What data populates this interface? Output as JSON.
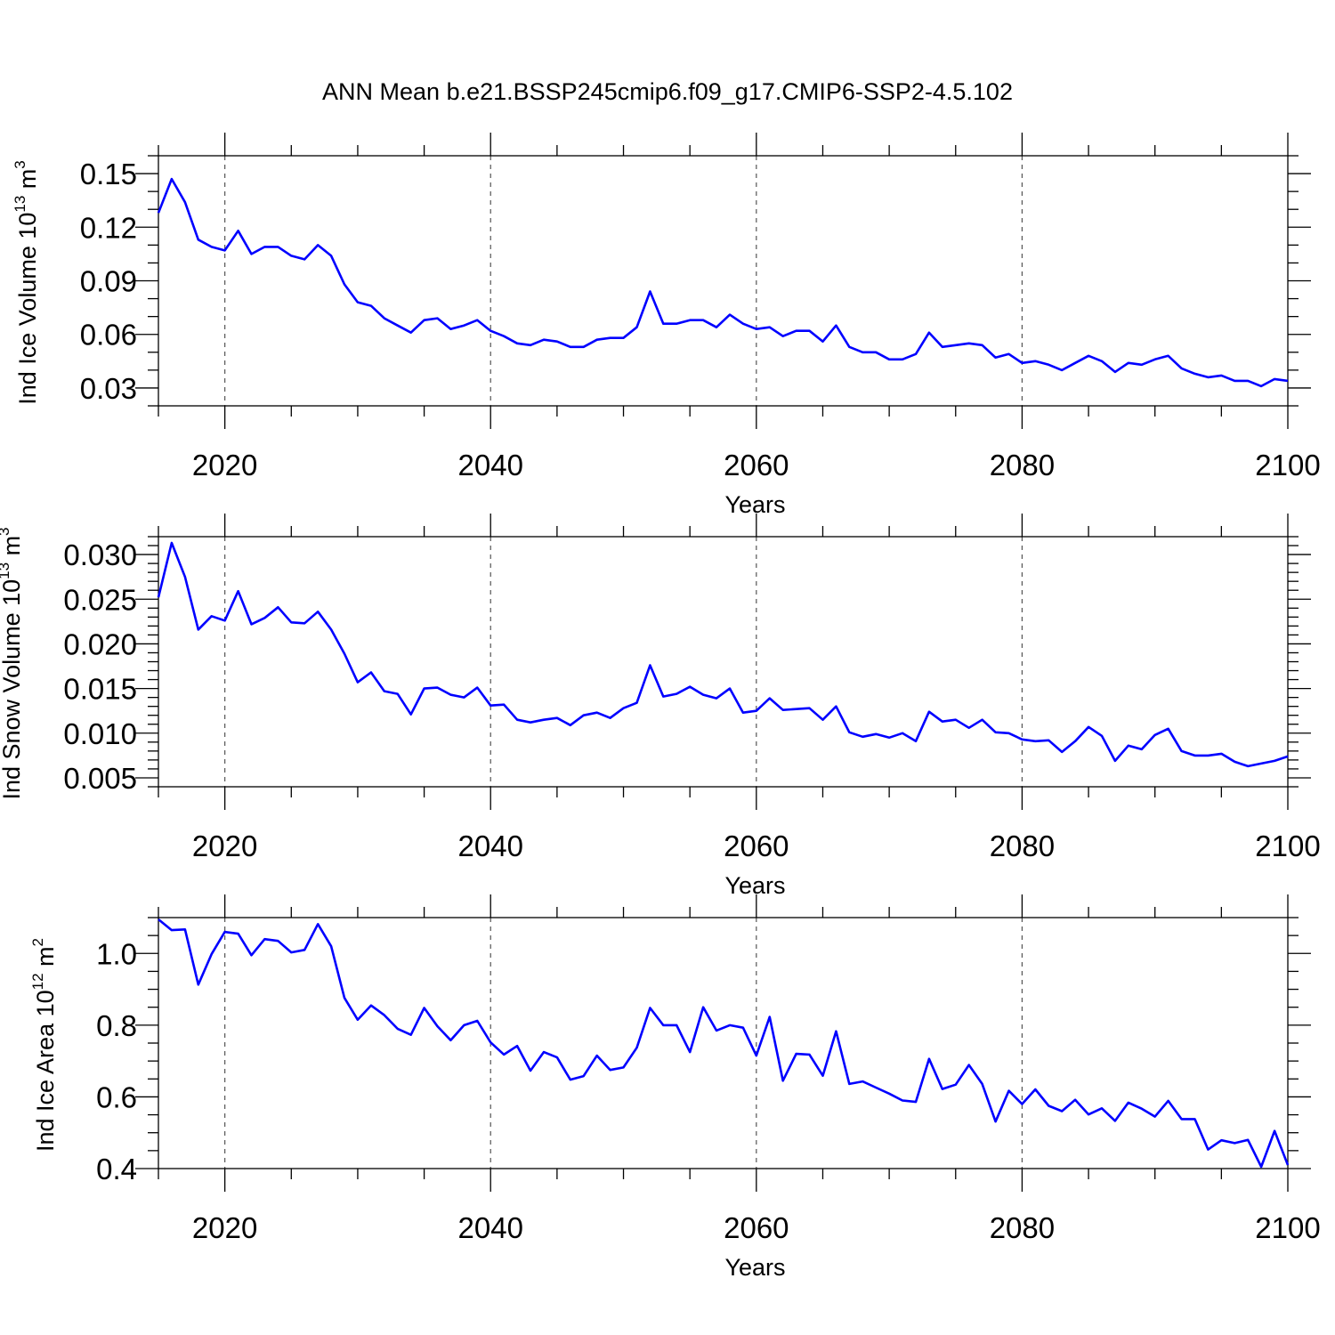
{
  "figure_title": "ANN Mean b.e21.BSSP245cmip6.f09_g17.CMIP6-SSP2-4.5.102",
  "line_color": "#0000ff",
  "chart_data": [
    {
      "type": "line",
      "xlabel": "Years",
      "ylabel": {
        "pre": "Ind Ice Volume 10",
        "sup": "13",
        "post": " m",
        "sup2": "3"
      },
      "xlim": [
        2015,
        2100
      ],
      "ylim": [
        0.02,
        0.16
      ],
      "xticks": [
        "2020",
        "2040",
        "2060",
        "2080",
        "2100"
      ],
      "yticks": [
        "0.03",
        "0.06",
        "0.09",
        "0.12",
        "0.15"
      ],
      "ytick_minor_step": 0.01,
      "x": [
        2015,
        2016,
        2017,
        2018,
        2019,
        2020,
        2021,
        2022,
        2023,
        2024,
        2025,
        2026,
        2027,
        2028,
        2029,
        2030,
        2031,
        2032,
        2033,
        2034,
        2035,
        2036,
        2037,
        2038,
        2039,
        2040,
        2041,
        2042,
        2043,
        2044,
        2045,
        2046,
        2047,
        2048,
        2049,
        2050,
        2051,
        2052,
        2053,
        2054,
        2055,
        2056,
        2057,
        2058,
        2059,
        2060,
        2061,
        2062,
        2063,
        2064,
        2065,
        2066,
        2067,
        2068,
        2069,
        2070,
        2071,
        2072,
        2073,
        2074,
        2075,
        2076,
        2077,
        2078,
        2079,
        2080,
        2081,
        2082,
        2083,
        2084,
        2085,
        2086,
        2087,
        2088,
        2089,
        2090,
        2091,
        2092,
        2093,
        2094,
        2095,
        2096,
        2097,
        2098,
        2099,
        2100
      ],
      "y": [
        0.128,
        0.147,
        0.134,
        0.113,
        0.109,
        0.107,
        0.118,
        0.105,
        0.109,
        0.109,
        0.104,
        0.102,
        0.11,
        0.104,
        0.088,
        0.078,
        0.076,
        0.069,
        0.065,
        0.061,
        0.068,
        0.069,
        0.063,
        0.065,
        0.068,
        0.062,
        0.059,
        0.055,
        0.054,
        0.057,
        0.056,
        0.053,
        0.053,
        0.057,
        0.058,
        0.058,
        0.064,
        0.084,
        0.066,
        0.066,
        0.068,
        0.068,
        0.064,
        0.071,
        0.066,
        0.063,
        0.064,
        0.059,
        0.062,
        0.062,
        0.056,
        0.065,
        0.053,
        0.05,
        0.05,
        0.046,
        0.046,
        0.049,
        0.061,
        0.053,
        0.054,
        0.055,
        0.054,
        0.047,
        0.049,
        0.044,
        0.045,
        0.043,
        0.04,
        0.044,
        0.048,
        0.045,
        0.039,
        0.044,
        0.043,
        0.046,
        0.048,
        0.041,
        0.038,
        0.036,
        0.037,
        0.034,
        0.034,
        0.031,
        0.035,
        0.034
      ]
    },
    {
      "type": "line",
      "xlabel": "Years",
      "ylabel": {
        "pre": "Ind Snow Volume 10",
        "sup": "13",
        "post": " m",
        "sup2": "3"
      },
      "xlim": [
        2015,
        2100
      ],
      "ylim": [
        0.004,
        0.032
      ],
      "xticks": [
        "2020",
        "2040",
        "2060",
        "2080",
        "2100"
      ],
      "yticks": [
        "0.005",
        "0.010",
        "0.015",
        "0.020",
        "0.025",
        "0.030"
      ],
      "ytick_minor_step": 0.001,
      "x": [
        2015,
        2016,
        2017,
        2018,
        2019,
        2020,
        2021,
        2022,
        2023,
        2024,
        2025,
        2026,
        2027,
        2028,
        2029,
        2030,
        2031,
        2032,
        2033,
        2034,
        2035,
        2036,
        2037,
        2038,
        2039,
        2040,
        2041,
        2042,
        2043,
        2044,
        2045,
        2046,
        2047,
        2048,
        2049,
        2050,
        2051,
        2052,
        2053,
        2054,
        2055,
        2056,
        2057,
        2058,
        2059,
        2060,
        2061,
        2062,
        2063,
        2064,
        2065,
        2066,
        2067,
        2068,
        2069,
        2070,
        2071,
        2072,
        2073,
        2074,
        2075,
        2076,
        2077,
        2078,
        2079,
        2080,
        2081,
        2082,
        2083,
        2084,
        2085,
        2086,
        2087,
        2088,
        2089,
        2090,
        2091,
        2092,
        2093,
        2094,
        2095,
        2096,
        2097,
        2098,
        2099,
        2100
      ],
      "y": [
        0.0252,
        0.0313,
        0.0275,
        0.0216,
        0.0231,
        0.0226,
        0.0259,
        0.0222,
        0.0229,
        0.0241,
        0.0224,
        0.0223,
        0.0236,
        0.0216,
        0.0189,
        0.0157,
        0.0168,
        0.0147,
        0.0144,
        0.0121,
        0.015,
        0.0151,
        0.0143,
        0.014,
        0.0151,
        0.0131,
        0.0132,
        0.0115,
        0.0112,
        0.0115,
        0.0117,
        0.0109,
        0.012,
        0.0123,
        0.0117,
        0.0128,
        0.0134,
        0.0176,
        0.0141,
        0.0144,
        0.0152,
        0.0143,
        0.0139,
        0.015,
        0.0123,
        0.0125,
        0.0139,
        0.0126,
        0.0127,
        0.0128,
        0.0115,
        0.013,
        0.0101,
        0.0096,
        0.0099,
        0.0095,
        0.01,
        0.0091,
        0.0124,
        0.0113,
        0.0115,
        0.0106,
        0.0115,
        0.0101,
        0.01,
        0.0093,
        0.0091,
        0.0092,
        0.0079,
        0.0091,
        0.0107,
        0.0097,
        0.0069,
        0.0086,
        0.0082,
        0.0098,
        0.0105,
        0.008,
        0.0075,
        0.0075,
        0.0077,
        0.0068,
        0.0063,
        0.0066,
        0.0069,
        0.0074
      ]
    },
    {
      "type": "line",
      "xlabel": "Years",
      "ylabel": {
        "pre": "Ind Ice Area 10",
        "sup": "12",
        "post": " m",
        "sup2": "2"
      },
      "xlim": [
        2015,
        2100
      ],
      "ylim": [
        0.4,
        1.1
      ],
      "xticks": [
        "2020",
        "2040",
        "2060",
        "2080",
        "2100"
      ],
      "yticks": [
        "0.4",
        "0.6",
        "0.8",
        "1.0"
      ],
      "ytick_minor_step": 0.05,
      "x": [
        2015,
        2016,
        2017,
        2018,
        2019,
        2020,
        2021,
        2022,
        2023,
        2024,
        2025,
        2026,
        2027,
        2028,
        2029,
        2030,
        2031,
        2032,
        2033,
        2034,
        2035,
        2036,
        2037,
        2038,
        2039,
        2040,
        2041,
        2042,
        2043,
        2044,
        2045,
        2046,
        2047,
        2048,
        2049,
        2050,
        2051,
        2052,
        2053,
        2054,
        2055,
        2056,
        2057,
        2058,
        2059,
        2060,
        2061,
        2062,
        2063,
        2064,
        2065,
        2066,
        2067,
        2068,
        2069,
        2070,
        2071,
        2072,
        2073,
        2074,
        2075,
        2076,
        2077,
        2078,
        2079,
        2080,
        2081,
        2082,
        2083,
        2084,
        2085,
        2086,
        2087,
        2088,
        2089,
        2090,
        2091,
        2092,
        2093,
        2094,
        2095,
        2096,
        2097,
        2098,
        2099,
        2100
      ],
      "y": [
        1.095,
        1.065,
        1.067,
        0.913,
        0.998,
        1.06,
        1.055,
        0.995,
        1.04,
        1.035,
        1.003,
        1.01,
        1.082,
        1.02,
        0.876,
        0.815,
        0.855,
        0.828,
        0.79,
        0.773,
        0.848,
        0.797,
        0.758,
        0.8,
        0.812,
        0.752,
        0.718,
        0.742,
        0.673,
        0.725,
        0.71,
        0.648,
        0.658,
        0.715,
        0.675,
        0.682,
        0.737,
        0.848,
        0.8,
        0.8,
        0.725,
        0.85,
        0.785,
        0.8,
        0.793,
        0.715,
        0.823,
        0.645,
        0.72,
        0.718,
        0.659,
        0.783,
        0.636,
        0.643,
        0.626,
        0.609,
        0.59,
        0.586,
        0.706,
        0.622,
        0.634,
        0.689,
        0.636,
        0.531,
        0.617,
        0.58,
        0.621,
        0.575,
        0.56,
        0.592,
        0.551,
        0.568,
        0.533,
        0.584,
        0.567,
        0.545,
        0.589,
        0.538,
        0.538,
        0.453,
        0.479,
        0.471,
        0.48,
        0.405,
        0.505,
        0.41
      ]
    }
  ]
}
